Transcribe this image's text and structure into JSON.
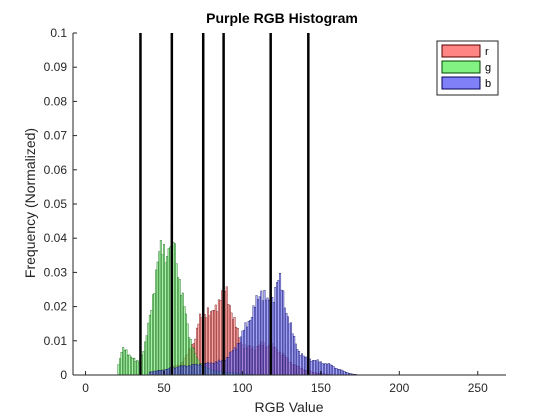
{
  "chart_data": {
    "type": "bar",
    "title": "Purple RGB Histogram",
    "xlabel": "RGB Value",
    "ylabel": "Frequency (Normalized)",
    "xlim": [
      -8,
      268
    ],
    "ylim": [
      0,
      0.1
    ],
    "xticks": [
      "0",
      "50",
      "100",
      "150",
      "200",
      "250"
    ],
    "yticks": [
      "0",
      "0.01",
      "0.02",
      "0.03",
      "0.04",
      "0.05",
      "0.06",
      "0.07",
      "0.08",
      "0.09",
      "0.1"
    ],
    "grid": false,
    "legend_placement": "top-right",
    "vertical_lines_x": [
      35,
      55,
      75,
      88,
      118,
      142
    ],
    "series": [
      {
        "name": "r",
        "color": "#ff6f6f",
        "edge": "#550000",
        "points": [
          [
            40,
            0.0008
          ],
          [
            50,
            0.0015
          ],
          [
            60,
            0.003
          ],
          [
            65,
            0.006
          ],
          [
            70,
            0.011
          ],
          [
            72,
            0.015
          ],
          [
            75,
            0.018
          ],
          [
            78,
            0.019
          ],
          [
            80,
            0.017
          ],
          [
            82,
            0.019
          ],
          [
            84,
            0.021
          ],
          [
            86,
            0.023
          ],
          [
            88,
            0.025
          ],
          [
            90,
            0.024
          ],
          [
            92,
            0.021
          ],
          [
            94,
            0.017
          ],
          [
            96,
            0.014
          ],
          [
            98,
            0.011
          ],
          [
            100,
            0.009
          ],
          [
            103,
            0.008
          ],
          [
            106,
            0.008
          ],
          [
            110,
            0.0085
          ],
          [
            114,
            0.009
          ],
          [
            118,
            0.0085
          ],
          [
            122,
            0.0075
          ],
          [
            126,
            0.006
          ],
          [
            130,
            0.004
          ],
          [
            135,
            0.0025
          ],
          [
            140,
            0.0015
          ],
          [
            145,
            0.0008
          ],
          [
            150,
            0.0004
          ],
          [
            160,
            0
          ]
        ]
      },
      {
        "name": "g",
        "color": "#6cf06c",
        "edge": "#004400",
        "points": [
          [
            20,
            0.001
          ],
          [
            22,
            0.005
          ],
          [
            24,
            0.0075
          ],
          [
            26,
            0.007
          ],
          [
            28,
            0.006
          ],
          [
            30,
            0.005
          ],
          [
            32,
            0.004
          ],
          [
            34,
            0.004
          ],
          [
            36,
            0.006
          ],
          [
            38,
            0.009
          ],
          [
            40,
            0.014
          ],
          [
            42,
            0.02
          ],
          [
            44,
            0.027
          ],
          [
            46,
            0.033
          ],
          [
            48,
            0.036
          ],
          [
            50,
            0.037
          ],
          [
            52,
            0.036
          ],
          [
            54,
            0.038
          ],
          [
            55,
            0.0405
          ],
          [
            56,
            0.039
          ],
          [
            58,
            0.034
          ],
          [
            60,
            0.028
          ],
          [
            62,
            0.022
          ],
          [
            64,
            0.017
          ],
          [
            66,
            0.012
          ],
          [
            68,
            0.009
          ],
          [
            70,
            0.006
          ],
          [
            72,
            0.004
          ],
          [
            76,
            0.0025
          ],
          [
            80,
            0.0015
          ],
          [
            90,
            0.0008
          ],
          [
            100,
            0.0004
          ],
          [
            110,
            0
          ]
        ]
      },
      {
        "name": "b",
        "color": "#6a6af7",
        "edge": "#000055",
        "points": [
          [
            40,
            0.0008
          ],
          [
            50,
            0.0015
          ],
          [
            60,
            0.0025
          ],
          [
            70,
            0.003
          ],
          [
            80,
            0.0035
          ],
          [
            86,
            0.004
          ],
          [
            90,
            0.005
          ],
          [
            94,
            0.007
          ],
          [
            98,
            0.01
          ],
          [
            102,
            0.014
          ],
          [
            106,
            0.018
          ],
          [
            110,
            0.022
          ],
          [
            112,
            0.025
          ],
          [
            114,
            0.024
          ],
          [
            116,
            0.021
          ],
          [
            118,
            0.02
          ],
          [
            120,
            0.024
          ],
          [
            122,
            0.028
          ],
          [
            124,
            0.027
          ],
          [
            126,
            0.023
          ],
          [
            128,
            0.019
          ],
          [
            130,
            0.016
          ],
          [
            132,
            0.012
          ],
          [
            134,
            0.009
          ],
          [
            136,
            0.007
          ],
          [
            138,
            0.006
          ],
          [
            140,
            0.005
          ],
          [
            144,
            0.0045
          ],
          [
            148,
            0.004
          ],
          [
            152,
            0.0035
          ],
          [
            156,
            0.003
          ],
          [
            160,
            0.002
          ],
          [
            165,
            0.001
          ],
          [
            170,
            0.0003
          ],
          [
            175,
            0
          ]
        ]
      }
    ]
  }
}
